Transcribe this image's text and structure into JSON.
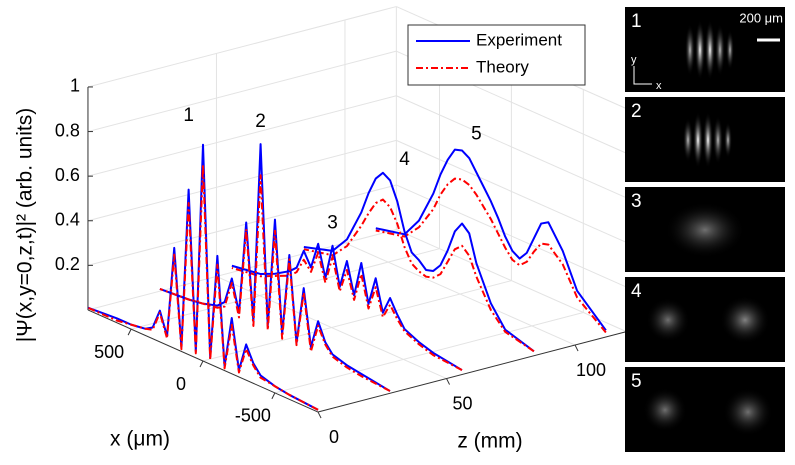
{
  "chart_data": {
    "type": "waterfall3d",
    "ylabel": "|Ψ(x,y=0,z,t)|² (arb. units)",
    "xlabel": "x (μm)",
    "zlabel": "z (mm)",
    "xlim": [
      -800,
      800
    ],
    "xticks": [
      -500,
      0,
      500
    ],
    "zlim": [
      0,
      120
    ],
    "zticks": [
      0,
      50,
      100
    ],
    "ylim": [
      0,
      1
    ],
    "yticks": [
      0.2,
      0.4,
      0.6,
      0.8,
      1
    ],
    "grid": true,
    "legend": [
      {
        "name": "Experiment",
        "color": "#0000ff"
      },
      {
        "name": "Theory",
        "color": "#ff0000"
      }
    ],
    "x": [
      -800,
      -600,
      -500,
      -400,
      -350,
      -300,
      -250,
      -200,
      -150,
      -100,
      -50,
      0,
      50,
      100,
      150,
      200,
      250,
      300,
      350,
      400,
      500,
      600,
      800
    ],
    "profiles": [
      {
        "label": "1",
        "z": 0,
        "experiment": [
          0.01,
          0.02,
          0.03,
          0.05,
          0.09,
          0.16,
          0.03,
          0.25,
          0.02,
          0.5,
          0.03,
          0.97,
          0.03,
          0.74,
          0.02,
          0.45,
          0.04,
          0.14,
          0.05,
          0.03,
          0.02,
          0.02,
          0.01
        ],
        "theory": [
          0.01,
          0.02,
          0.03,
          0.04,
          0.08,
          0.14,
          0.02,
          0.22,
          0.01,
          0.46,
          0.02,
          0.88,
          0.02,
          0.68,
          0.01,
          0.42,
          0.03,
          0.13,
          0.04,
          0.03,
          0.02,
          0.01,
          0.01
        ]
      },
      {
        "label": "2",
        "z": 28,
        "experiment": [
          0.01,
          0.03,
          0.04,
          0.06,
          0.1,
          0.18,
          0.05,
          0.3,
          0.04,
          0.42,
          0.05,
          0.55,
          0.06,
          0.86,
          0.05,
          0.48,
          0.06,
          0.2,
          0.08,
          0.05,
          0.03,
          0.02,
          0.01
        ],
        "theory": [
          0.01,
          0.02,
          0.03,
          0.05,
          0.09,
          0.16,
          0.03,
          0.28,
          0.03,
          0.4,
          0.03,
          0.5,
          0.04,
          0.72,
          0.03,
          0.45,
          0.04,
          0.18,
          0.06,
          0.04,
          0.03,
          0.02,
          0.01
        ]
      },
      {
        "label": "3",
        "z": 56,
        "experiment": [
          0.02,
          0.04,
          0.06,
          0.09,
          0.14,
          0.2,
          0.12,
          0.26,
          0.13,
          0.3,
          0.14,
          0.28,
          0.15,
          0.32,
          0.16,
          0.3,
          0.18,
          0.24,
          0.15,
          0.12,
          0.08,
          0.05,
          0.03
        ],
        "theory": [
          0.02,
          0.03,
          0.05,
          0.08,
          0.12,
          0.17,
          0.1,
          0.22,
          0.11,
          0.25,
          0.12,
          0.24,
          0.13,
          0.27,
          0.14,
          0.26,
          0.16,
          0.2,
          0.13,
          0.1,
          0.07,
          0.04,
          0.02
        ]
      },
      {
        "label": "4",
        "z": 84,
        "experiment": [
          0.02,
          0.06,
          0.15,
          0.3,
          0.42,
          0.45,
          0.4,
          0.3,
          0.22,
          0.18,
          0.17,
          0.2,
          0.22,
          0.3,
          0.42,
          0.5,
          0.52,
          0.48,
          0.4,
          0.3,
          0.15,
          0.07,
          0.03
        ],
        "theory": [
          0.02,
          0.05,
          0.12,
          0.24,
          0.32,
          0.35,
          0.32,
          0.25,
          0.18,
          0.15,
          0.14,
          0.15,
          0.17,
          0.23,
          0.32,
          0.38,
          0.4,
          0.37,
          0.31,
          0.24,
          0.12,
          0.05,
          0.02
        ]
      },
      {
        "label": "5",
        "z": 112,
        "experiment": [
          0.03,
          0.15,
          0.3,
          0.4,
          0.38,
          0.3,
          0.22,
          0.18,
          0.2,
          0.25,
          0.32,
          0.38,
          0.43,
          0.48,
          0.53,
          0.55,
          0.54,
          0.48,
          0.4,
          0.3,
          0.15,
          0.06,
          0.03
        ],
        "theory": [
          0.02,
          0.12,
          0.24,
          0.3,
          0.29,
          0.24,
          0.18,
          0.15,
          0.16,
          0.2,
          0.25,
          0.3,
          0.34,
          0.38,
          0.41,
          0.42,
          0.41,
          0.37,
          0.31,
          0.23,
          0.12,
          0.05,
          0.02
        ]
      }
    ]
  },
  "images": {
    "panels": [
      "1",
      "2",
      "3",
      "4",
      "5"
    ],
    "scale_bar": "200 μm",
    "axis_y": "y",
    "axis_x": "x"
  }
}
